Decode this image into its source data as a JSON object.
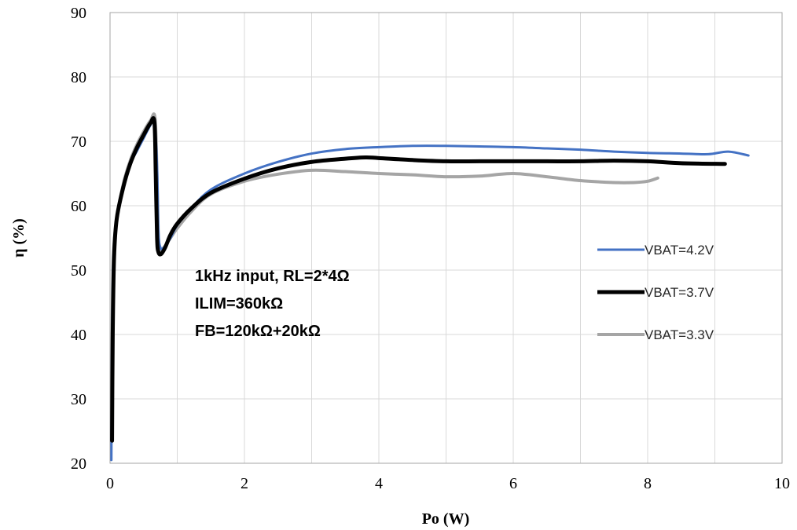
{
  "chart_data": {
    "type": "line",
    "xlabel": "Po (W)",
    "ylabel": "η (%)",
    "xlim": [
      0,
      10
    ],
    "ylim": [
      20,
      90
    ],
    "x_ticks": [
      0,
      2,
      4,
      6,
      8,
      10
    ],
    "y_ticks": [
      20,
      30,
      40,
      50,
      60,
      70,
      80,
      90
    ],
    "x_minor_step": 1,
    "y_minor_step": 10,
    "grid": true,
    "legend_position": "right",
    "annotations": [
      "1kHz input, RL=2*4Ω",
      "ILIM=360kΩ",
      "FB=120kΩ+20kΩ"
    ],
    "series": [
      {
        "name": "VBAT=4.2V",
        "color": "#4472c4",
        "width": 3,
        "points": [
          [
            0.02,
            20.5
          ],
          [
            0.03,
            40
          ],
          [
            0.05,
            52
          ],
          [
            0.1,
            58
          ],
          [
            0.2,
            63
          ],
          [
            0.3,
            66.5
          ],
          [
            0.4,
            68.5
          ],
          [
            0.5,
            70.5
          ],
          [
            0.6,
            72.5
          ],
          [
            0.66,
            73
          ],
          [
            0.7,
            66
          ],
          [
            0.72,
            56
          ],
          [
            0.75,
            53.5
          ],
          [
            0.8,
            53.5
          ],
          [
            0.9,
            55
          ],
          [
            1.0,
            57
          ],
          [
            1.2,
            59.5
          ],
          [
            1.5,
            62.5
          ],
          [
            2.0,
            65
          ],
          [
            2.5,
            66.8
          ],
          [
            3.0,
            68.1
          ],
          [
            3.5,
            68.8
          ],
          [
            4.0,
            69.1
          ],
          [
            4.5,
            69.3
          ],
          [
            5.0,
            69.3
          ],
          [
            5.5,
            69.2
          ],
          [
            6.0,
            69.1
          ],
          [
            6.5,
            68.9
          ],
          [
            7.0,
            68.7
          ],
          [
            7.5,
            68.4
          ],
          [
            8.0,
            68.2
          ],
          [
            8.5,
            68.1
          ],
          [
            8.9,
            68.0
          ],
          [
            9.2,
            68.4
          ],
          [
            9.5,
            67.8
          ]
        ]
      },
      {
        "name": "VBAT=3.7V",
        "color": "#000000",
        "width": 5,
        "points": [
          [
            0.03,
            23.5
          ],
          [
            0.04,
            40
          ],
          [
            0.06,
            52
          ],
          [
            0.1,
            58
          ],
          [
            0.2,
            63
          ],
          [
            0.3,
            66.5
          ],
          [
            0.4,
            69
          ],
          [
            0.5,
            71
          ],
          [
            0.6,
            72.8
          ],
          [
            0.66,
            73
          ],
          [
            0.68,
            65
          ],
          [
            0.7,
            55
          ],
          [
            0.72,
            52.8
          ],
          [
            0.76,
            52.5
          ],
          [
            0.82,
            53.5
          ],
          [
            0.9,
            55.5
          ],
          [
            1.0,
            57.2
          ],
          [
            1.2,
            59.5
          ],
          [
            1.5,
            62
          ],
          [
            2.0,
            64.2
          ],
          [
            2.5,
            65.8
          ],
          [
            3.0,
            66.8
          ],
          [
            3.5,
            67.3
          ],
          [
            3.8,
            67.5
          ],
          [
            4.0,
            67.4
          ],
          [
            4.5,
            67.1
          ],
          [
            5.0,
            66.9
          ],
          [
            5.5,
            66.9
          ],
          [
            6.0,
            66.9
          ],
          [
            6.5,
            66.9
          ],
          [
            7.0,
            66.9
          ],
          [
            7.5,
            67.0
          ],
          [
            8.0,
            66.9
          ],
          [
            8.5,
            66.6
          ],
          [
            9.15,
            66.5
          ]
        ]
      },
      {
        "name": "VBAT=3.3V",
        "color": "#a5a5a5",
        "width": 4,
        "points": [
          [
            0.02,
            27
          ],
          [
            0.03,
            40
          ],
          [
            0.05,
            52
          ],
          [
            0.1,
            58
          ],
          [
            0.2,
            63.5
          ],
          [
            0.3,
            67
          ],
          [
            0.4,
            69.5
          ],
          [
            0.5,
            71.5
          ],
          [
            0.6,
            73.2
          ],
          [
            0.67,
            73.6
          ],
          [
            0.7,
            64
          ],
          [
            0.72,
            55
          ],
          [
            0.75,
            53.2
          ],
          [
            0.8,
            53.5
          ],
          [
            0.9,
            55
          ],
          [
            1.0,
            56.5
          ],
          [
            1.2,
            59
          ],
          [
            1.5,
            61.8
          ],
          [
            2.0,
            63.8
          ],
          [
            2.5,
            64.9
          ],
          [
            3.0,
            65.5
          ],
          [
            3.5,
            65.3
          ],
          [
            4.0,
            65.0
          ],
          [
            4.5,
            64.8
          ],
          [
            5.0,
            64.5
          ],
          [
            5.5,
            64.6
          ],
          [
            6.0,
            65.0
          ],
          [
            6.5,
            64.5
          ],
          [
            7.0,
            63.9
          ],
          [
            7.5,
            63.6
          ],
          [
            7.8,
            63.6
          ],
          [
            8.0,
            63.8
          ],
          [
            8.15,
            64.3
          ]
        ]
      }
    ]
  }
}
